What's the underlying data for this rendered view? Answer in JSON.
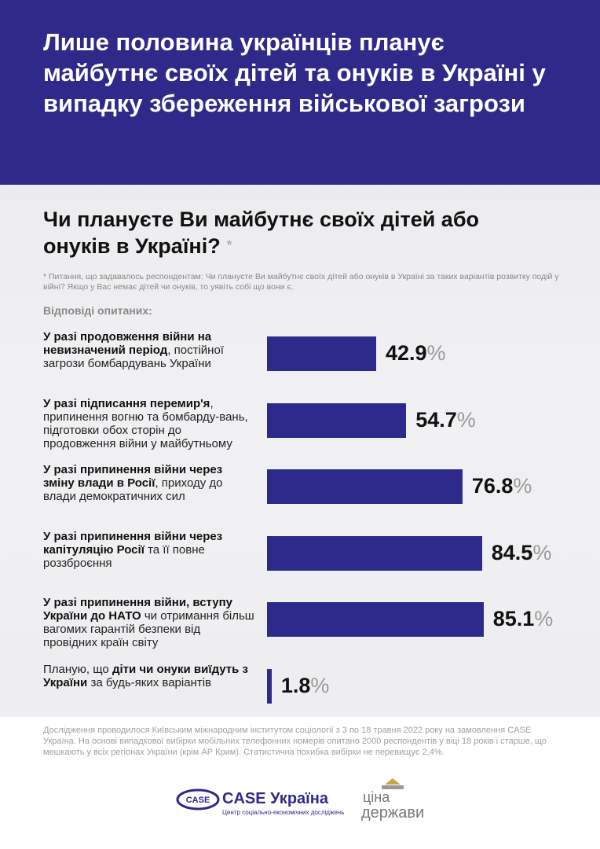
{
  "header": {
    "title": "Лише половина українців планує майбутнє своїх дітей та онуків в Україні у випадку збереження військової загрози"
  },
  "chart_data": {
    "type": "bar",
    "orientation": "horizontal",
    "title": "Чи плануєте Ви майбутнє своїх дітей або онуків в Україні?",
    "title_marker": "*",
    "footnote": "* Питання, що задавалось респондентам: Чи плануєте Ви майбутнє своїх дітей або онуків в Україні за таких варіантів розвитку подій у війні? Якщо у Вас немає дітей чи онуків, то уявіть собі що вони є.",
    "axis_label": "Відповіді опитаних:",
    "categories": [
      [
        {
          "text": "У разі продовження війни на невизначений період",
          "bold": true
        },
        {
          "text": ", постійної загрози бомбардувань України",
          "bold": false
        }
      ],
      [
        {
          "text": "У разі підписання перемир'я",
          "bold": true
        },
        {
          "text": ", припинення вогню та бомбарду-вань, підготовки обох сторін до продовження війни у майбутньому",
          "bold": false
        }
      ],
      [
        {
          "text": "У разі припинення війни через зміну влади в Росії",
          "bold": true
        },
        {
          "text": ", приходу до влади демократичних сил",
          "bold": false
        }
      ],
      [
        {
          "text": "У разі припинення війни через капітуляцію Росії",
          "bold": true
        },
        {
          "text": " та її повне роззброєння",
          "bold": false
        }
      ],
      [
        {
          "text": "У разі припинення війни, вступу України до НАТО",
          "bold": true
        },
        {
          "text": " чи отримання більш вагомих гарантій безпеки від провідних країн світу",
          "bold": false
        }
      ],
      [
        {
          "text": "Планую, що ",
          "bold": false
        },
        {
          "text": "діти чи онуки виїдуть з України",
          "bold": true
        },
        {
          "text": " за будь-яких варіантів",
          "bold": false
        }
      ]
    ],
    "values": [
      42.9,
      54.7,
      76.8,
      84.5,
      85.1,
      1.8
    ],
    "unit": "%",
    "color": "#2e2a8c",
    "xlim": [
      0,
      100
    ]
  },
  "footer": {
    "note": "Дослідження проводилося Київським міжнародним інститутом соціології з 3 по 18 травня 2022 року на замовлення CASE Україна. На основі випадкової вибірки мобільних телефонних номерів опитано 2000 респондентів у віці 18 років і старше, що мешкають у всіх регіонах України (крім АР Крим). Статистична похибка вибірки не перевищує 2,4%.",
    "logo_case": {
      "badge": "CASE",
      "name": "CASE Україна",
      "tagline": "Центр соціально-економічних досліджень"
    },
    "logo_cina": {
      "line1": "ціна",
      "line2": "держави"
    }
  }
}
